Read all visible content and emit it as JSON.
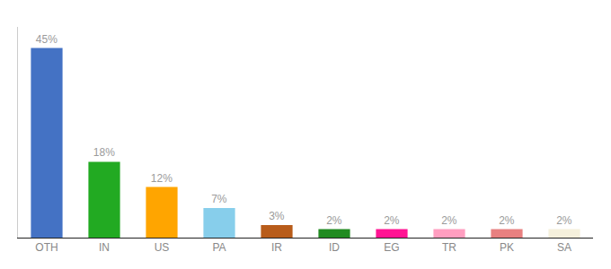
{
  "chart_data": {
    "type": "bar",
    "categories": [
      "OTH",
      "IN",
      "US",
      "PA",
      "IR",
      "ID",
      "EG",
      "TR",
      "PK",
      "SA"
    ],
    "values": [
      45,
      18,
      12,
      7,
      3,
      2,
      2,
      2,
      2,
      2
    ],
    "value_labels": [
      "45%",
      "18%",
      "12%",
      "7%",
      "3%",
      "2%",
      "2%",
      "2%",
      "2%",
      "2%"
    ],
    "colors": [
      "#4472c4",
      "#22aa22",
      "#ffa500",
      "#87ceeb",
      "#b85c1a",
      "#228B22",
      "#ff1493",
      "#ff9ec0",
      "#e88080",
      "#f5f0dc"
    ],
    "ylim": [
      0,
      50
    ],
    "data_labels": true,
    "tick_labels": "x",
    "grid": false
  }
}
